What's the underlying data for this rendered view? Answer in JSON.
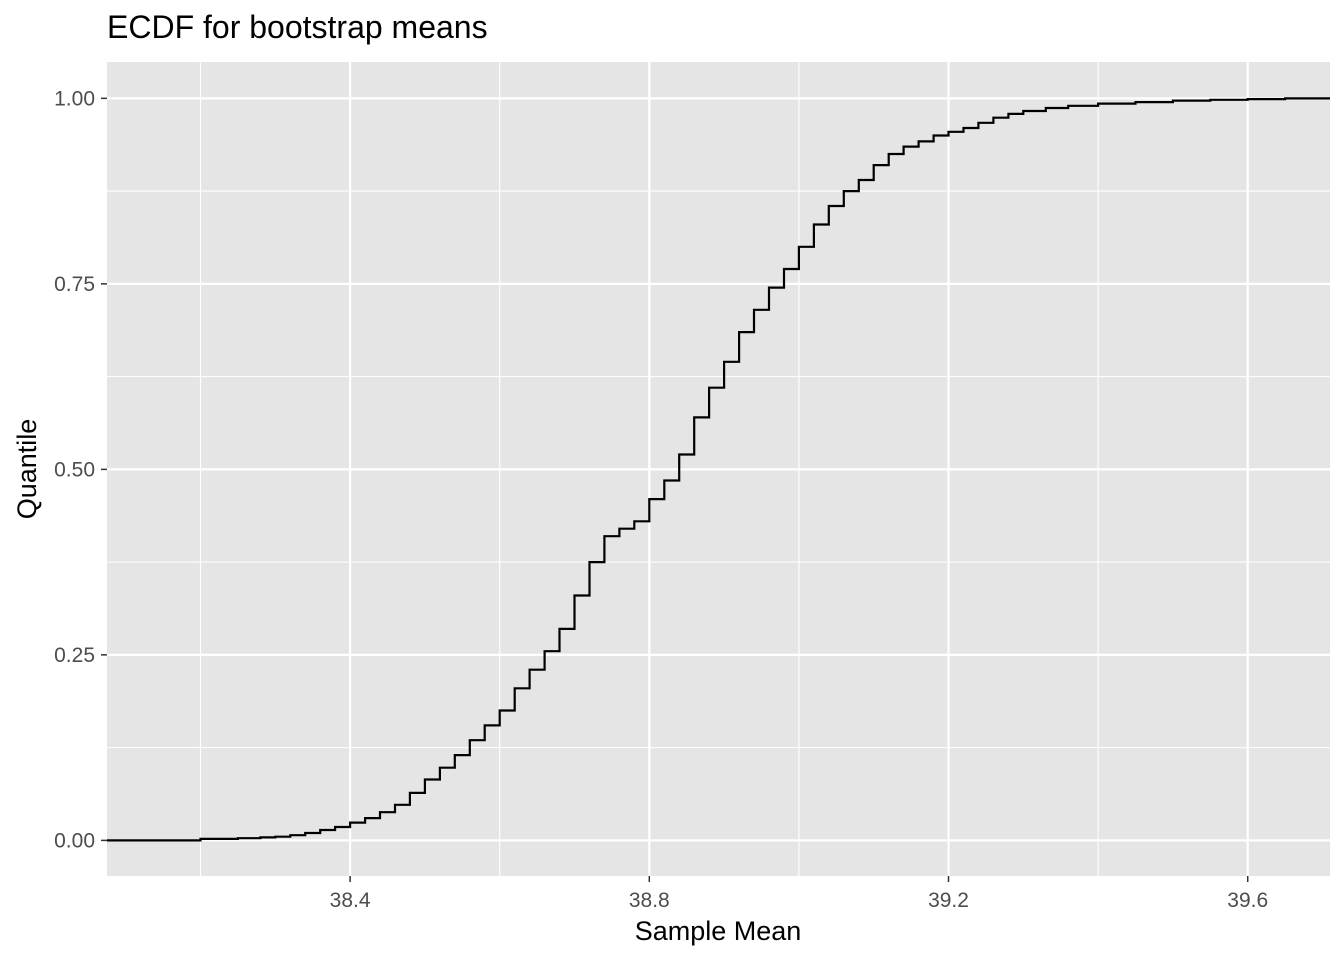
{
  "chart_data": {
    "type": "line",
    "title": "ECDF for bootstrap means",
    "xlabel": "Sample Mean",
    "ylabel": "Quantile",
    "xlim": [
      38.075,
      39.71
    ],
    "ylim": [
      -0.048,
      1.049
    ],
    "x_ticks": [
      38.4,
      38.8,
      39.2,
      39.6
    ],
    "x_tick_labels": [
      "38.4",
      "38.8",
      "39.2",
      "39.6"
    ],
    "y_ticks": [
      0,
      0.25,
      0.5,
      0.75,
      1
    ],
    "y_tick_labels": [
      "0.00",
      "0.25",
      "0.50",
      "0.75",
      "1.00"
    ],
    "x_minor": [
      38.2,
      38.6,
      39.0,
      39.4
    ],
    "y_minor": [
      0.125,
      0.375,
      0.625,
      0.875
    ],
    "grid": true,
    "legend": "none",
    "colors": {
      "panel": "#e5e5e5",
      "grid": "#ffffff",
      "line": "#000000",
      "tick_text": "#4d4d4d"
    },
    "series": [
      {
        "x": [
          38.075,
          38.15,
          38.2,
          38.25,
          38.28,
          38.3,
          38.32,
          38.34,
          38.36,
          38.38,
          38.4,
          38.42,
          38.44,
          38.46,
          38.48,
          38.5,
          38.52,
          38.54,
          38.56,
          38.58,
          38.6,
          38.62,
          38.64,
          38.66,
          38.68,
          38.7,
          38.72,
          38.74,
          38.76,
          38.78,
          38.8,
          38.82,
          38.84,
          38.86,
          38.88,
          38.9,
          38.92,
          38.94,
          38.96,
          38.98,
          39.0,
          39.02,
          39.04,
          39.06,
          39.08,
          39.1,
          39.12,
          39.14,
          39.16,
          39.18,
          39.2,
          39.22,
          39.24,
          39.26,
          39.28,
          39.3,
          39.33,
          39.36,
          39.4,
          39.45,
          39.5,
          39.55,
          39.6,
          39.65,
          39.71
        ],
        "y": [
          0.0,
          0.0,
          0.002,
          0.003,
          0.004,
          0.005,
          0.007,
          0.01,
          0.014,
          0.018,
          0.024,
          0.03,
          0.038,
          0.048,
          0.064,
          0.082,
          0.098,
          0.115,
          0.135,
          0.155,
          0.175,
          0.205,
          0.23,
          0.255,
          0.285,
          0.33,
          0.375,
          0.41,
          0.42,
          0.43,
          0.46,
          0.485,
          0.52,
          0.57,
          0.61,
          0.645,
          0.685,
          0.715,
          0.745,
          0.77,
          0.8,
          0.83,
          0.855,
          0.875,
          0.89,
          0.91,
          0.925,
          0.935,
          0.942,
          0.95,
          0.955,
          0.96,
          0.967,
          0.974,
          0.979,
          0.983,
          0.987,
          0.99,
          0.993,
          0.995,
          0.997,
          0.998,
          0.999,
          1.0,
          1.0
        ]
      }
    ]
  }
}
